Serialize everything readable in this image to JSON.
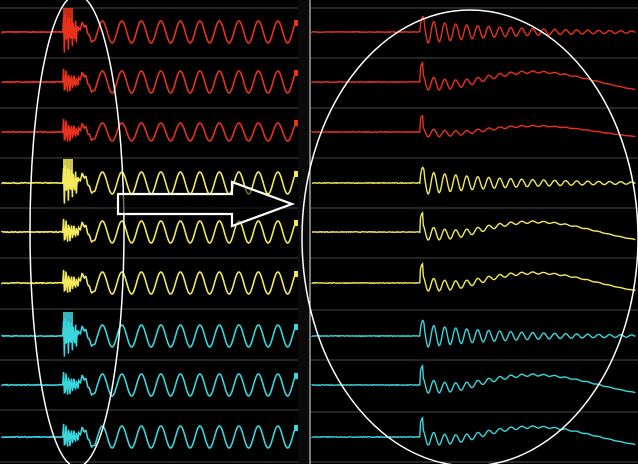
{
  "colors": {
    "background": "#000000",
    "grid": "#8e8e8e",
    "divider": "#c8c8c8",
    "red": "#e8321c",
    "yellow": "#f2ea5a",
    "cyan": "#39d6dc",
    "overlay": "#ffffff"
  },
  "panels": {
    "left": {
      "traces": [
        {
          "color": "red",
          "type": "burst-steady"
        },
        {
          "color": "red",
          "type": "spike-steady"
        },
        {
          "color": "red",
          "type": "spike-steady-small"
        },
        {
          "color": "yellow",
          "type": "burst-steady"
        },
        {
          "color": "yellow",
          "type": "spike-steady"
        },
        {
          "color": "yellow",
          "type": "spike-steady"
        },
        {
          "color": "cyan",
          "type": "burst-steady"
        },
        {
          "color": "cyan",
          "type": "spike-steady"
        },
        {
          "color": "cyan",
          "type": "spike-steady"
        }
      ]
    },
    "right": {
      "traces": [
        {
          "color": "red",
          "type": "decaying-oscillation"
        },
        {
          "color": "red",
          "type": "oscillation-then-swing"
        },
        {
          "color": "red",
          "type": "small-oscillation-then-swing"
        },
        {
          "color": "yellow",
          "type": "decaying-oscillation"
        },
        {
          "color": "yellow",
          "type": "oscillation-then-swing"
        },
        {
          "color": "yellow",
          "type": "oscillation-then-swing"
        },
        {
          "color": "cyan",
          "type": "decaying-oscillation"
        },
        {
          "color": "cyan",
          "type": "oscillation-then-swing"
        },
        {
          "color": "cyan",
          "type": "oscillation-then-swing"
        }
      ]
    }
  },
  "overlay": {
    "left_highlight": "ellipse",
    "right_highlight": "ellipse",
    "arrow_direction": "right"
  }
}
